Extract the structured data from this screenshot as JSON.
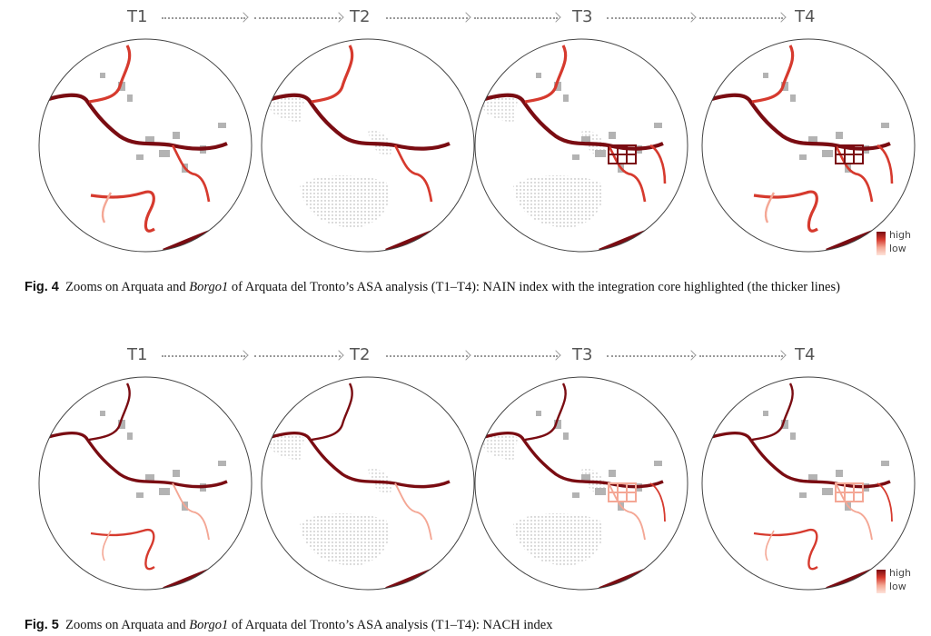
{
  "timeline": {
    "labels": [
      "T1",
      "T2",
      "T3",
      "T4"
    ]
  },
  "legend": {
    "high": "high",
    "low": "low",
    "colors": [
      "#7a0c12",
      "#d63a2e",
      "#f4a795"
    ]
  },
  "fig4": {
    "label": "Fig. 4",
    "caption_a": "Zooms on Arquata and ",
    "caption_italic": "Borgo1",
    "caption_b": " of Arquata del Tronto’s ASA analysis (T1–T4): NAIN index with the integration core highlighted (the thicker lines)"
  },
  "fig5": {
    "label": "Fig. 5",
    "caption_a": "Zooms on Arquata and ",
    "caption_italic": "Borgo1",
    "caption_b": " of Arquata del Tronto’s ASA analysis (T1–T4): NACH index"
  }
}
